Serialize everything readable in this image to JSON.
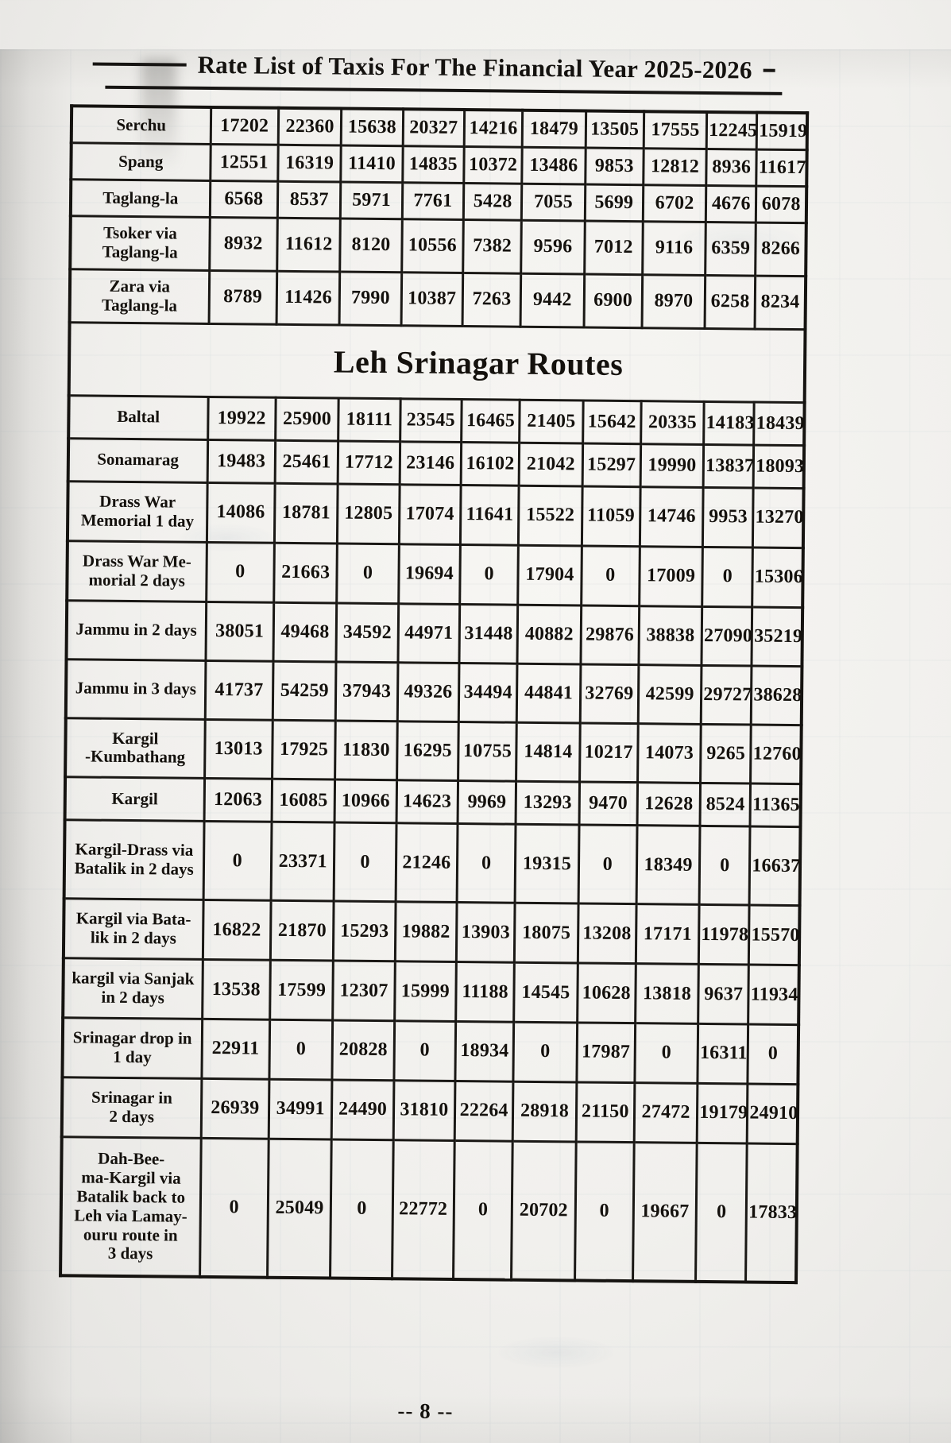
{
  "title": "Rate List of Taxis For The Financial Year 2025-2026",
  "section_header": "Leh Srinagar Routes",
  "page_number": "-- 8 --",
  "upper_table": {
    "rows": [
      {
        "route": "Serchu",
        "fares": [
          17202,
          22360,
          15638,
          20327,
          14216,
          18479,
          13505,
          17555,
          12245,
          15919
        ]
      },
      {
        "route": "Spang",
        "fares": [
          12551,
          16319,
          11410,
          14835,
          10372,
          13486,
          9853,
          12812,
          8936,
          11617
        ]
      },
      {
        "route": "Taglang-la",
        "fares": [
          6568,
          8537,
          5971,
          7761,
          5428,
          7055,
          5699,
          6702,
          4676,
          6078
        ]
      },
      {
        "route": "Tsoker via\nTaglang-la",
        "fares": [
          8932,
          11612,
          8120,
          10556,
          7382,
          9596,
          7012,
          9116,
          6359,
          8266
        ]
      },
      {
        "route": "Zara via\nTaglang-la",
        "fares": [
          8789,
          11426,
          7990,
          10387,
          7263,
          9442,
          6900,
          8970,
          6258,
          8234
        ]
      }
    ]
  },
  "leh_srinagar_table": {
    "rows": [
      {
        "route": "Baltal",
        "fares": [
          19922,
          25900,
          18111,
          23545,
          16465,
          21405,
          15642,
          20335,
          14183,
          18439
        ]
      },
      {
        "route": "Sonamarag",
        "fares": [
          19483,
          25461,
          17712,
          23146,
          16102,
          21042,
          15297,
          19990,
          13837,
          18093
        ]
      },
      {
        "route": "Drass War\nMemorial 1 day",
        "fares": [
          14086,
          18781,
          12805,
          17074,
          11641,
          15522,
          11059,
          14746,
          9953,
          13270
        ]
      },
      {
        "route": "Drass War Me-\nmorial 2 days",
        "fares": [
          0,
          21663,
          0,
          19694,
          0,
          17904,
          0,
          17009,
          0,
          15306
        ]
      },
      {
        "route": "Jammu in 2 days",
        "fares": [
          38051,
          49468,
          34592,
          44971,
          31448,
          40882,
          29876,
          38838,
          27090,
          35219
        ]
      },
      {
        "route": "Jammu in 3 days",
        "fares": [
          41737,
          54259,
          37943,
          49326,
          34494,
          44841,
          32769,
          42599,
          29727,
          38628
        ]
      },
      {
        "route": "Kargil\n-Kumbathang",
        "fares": [
          13013,
          17925,
          11830,
          16295,
          10755,
          14814,
          10217,
          14073,
          9265,
          12760
        ]
      },
      {
        "route": "Kargil",
        "fares": [
          12063,
          16085,
          10966,
          14623,
          9969,
          13293,
          9470,
          12628,
          8524,
          11365
        ]
      },
      {
        "route": "Kargil-Drass via\nBatalik in 2 days",
        "fares": [
          0,
          23371,
          0,
          21246,
          0,
          19315,
          0,
          18349,
          0,
          16637
        ]
      },
      {
        "route": "Kargil via Bata-\nlik in 2 days",
        "fares": [
          16822,
          21870,
          15293,
          19882,
          13903,
          18075,
          13208,
          17171,
          11978,
          15570
        ]
      },
      {
        "route": "kargil via Sanjak\nin 2 days",
        "fares": [
          13538,
          17599,
          12307,
          15999,
          11188,
          14545,
          10628,
          13818,
          9637,
          11934
        ]
      },
      {
        "route": "Srinagar drop in\n1 day",
        "fares": [
          22911,
          0,
          20828,
          0,
          18934,
          0,
          17987,
          0,
          16311,
          0
        ]
      },
      {
        "route": "Srinagar in\n2 days",
        "fares": [
          26939,
          34991,
          24490,
          31810,
          22264,
          28918,
          21150,
          27472,
          19179,
          24910
        ]
      },
      {
        "route": "Dah-Bee-\nma-Kargil via\nBatalik back to\nLeh via Lamay-\nouru route in\n3 days",
        "fares": [
          0,
          25049,
          0,
          22772,
          0,
          20702,
          0,
          19667,
          0,
          17833
        ]
      }
    ]
  }
}
